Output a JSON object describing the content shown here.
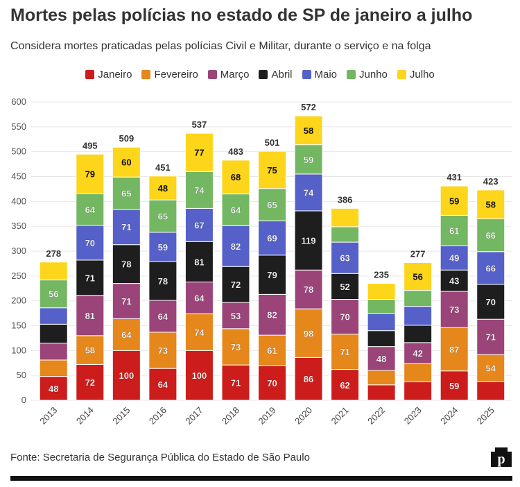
{
  "chart_data": {
    "type": "bar",
    "stacked": true,
    "title": "Mortes pelas polícias no estado de SP de janeiro a julho",
    "subtitle": "Considera mortes praticadas pelas polícias Civil e Militar, durante o serviço e na folga",
    "source": "Fonte: Secretaria de Segurança Pública do Estado de São Paulo",
    "categories": [
      "2013",
      "2014",
      "2015",
      "2016",
      "2017",
      "2018",
      "2019",
      "2020",
      "2021",
      "2022",
      "2023",
      "2024",
      "2025"
    ],
    "totals": [
      278,
      495,
      509,
      451,
      537,
      483,
      501,
      572,
      386,
      235,
      277,
      431,
      423
    ],
    "series": [
      {
        "name": "Janeiro",
        "color": "#cc1c1c",
        "values": [
          48,
          72,
          100,
          64,
          100,
          71,
          70,
          86,
          62,
          31,
          37,
          59,
          38
        ]
      },
      {
        "name": "Fevereiro",
        "color": "#e5871b",
        "values": [
          33,
          58,
          64,
          73,
          74,
          73,
          61,
          98,
          71,
          29,
          37,
          87,
          54
        ]
      },
      {
        "name": "Março",
        "color": "#9b4479",
        "values": [
          34,
          81,
          71,
          64,
          64,
          53,
          82,
          78,
          70,
          48,
          42,
          73,
          71
        ]
      },
      {
        "name": "Abril",
        "color": "#1e1e1e",
        "values": [
          38,
          71,
          78,
          78,
          81,
          72,
          79,
          119,
          52,
          32,
          35,
          43,
          70
        ]
      },
      {
        "name": "Maio",
        "color": "#5561c8",
        "values": [
          33,
          70,
          71,
          59,
          67,
          82,
          69,
          74,
          63,
          35,
          38,
          49,
          66
        ]
      },
      {
        "name": "Junho",
        "color": "#74b762",
        "values": [
          56,
          64,
          65,
          65,
          74,
          64,
          65,
          59,
          31,
          28,
          32,
          61,
          66
        ]
      },
      {
        "name": "Julho",
        "color": "#fdd51a",
        "values": [
          36,
          79,
          60,
          48,
          77,
          68,
          75,
          58,
          37,
          32,
          56,
          59,
          58
        ]
      }
    ],
    "ylim": [
      0,
      600
    ],
    "yticks": [
      0,
      50,
      100,
      150,
      200,
      250,
      300,
      350,
      400,
      450,
      500,
      550,
      600
    ],
    "grid": true,
    "legend_position": "top"
  },
  "logo_text": "p"
}
